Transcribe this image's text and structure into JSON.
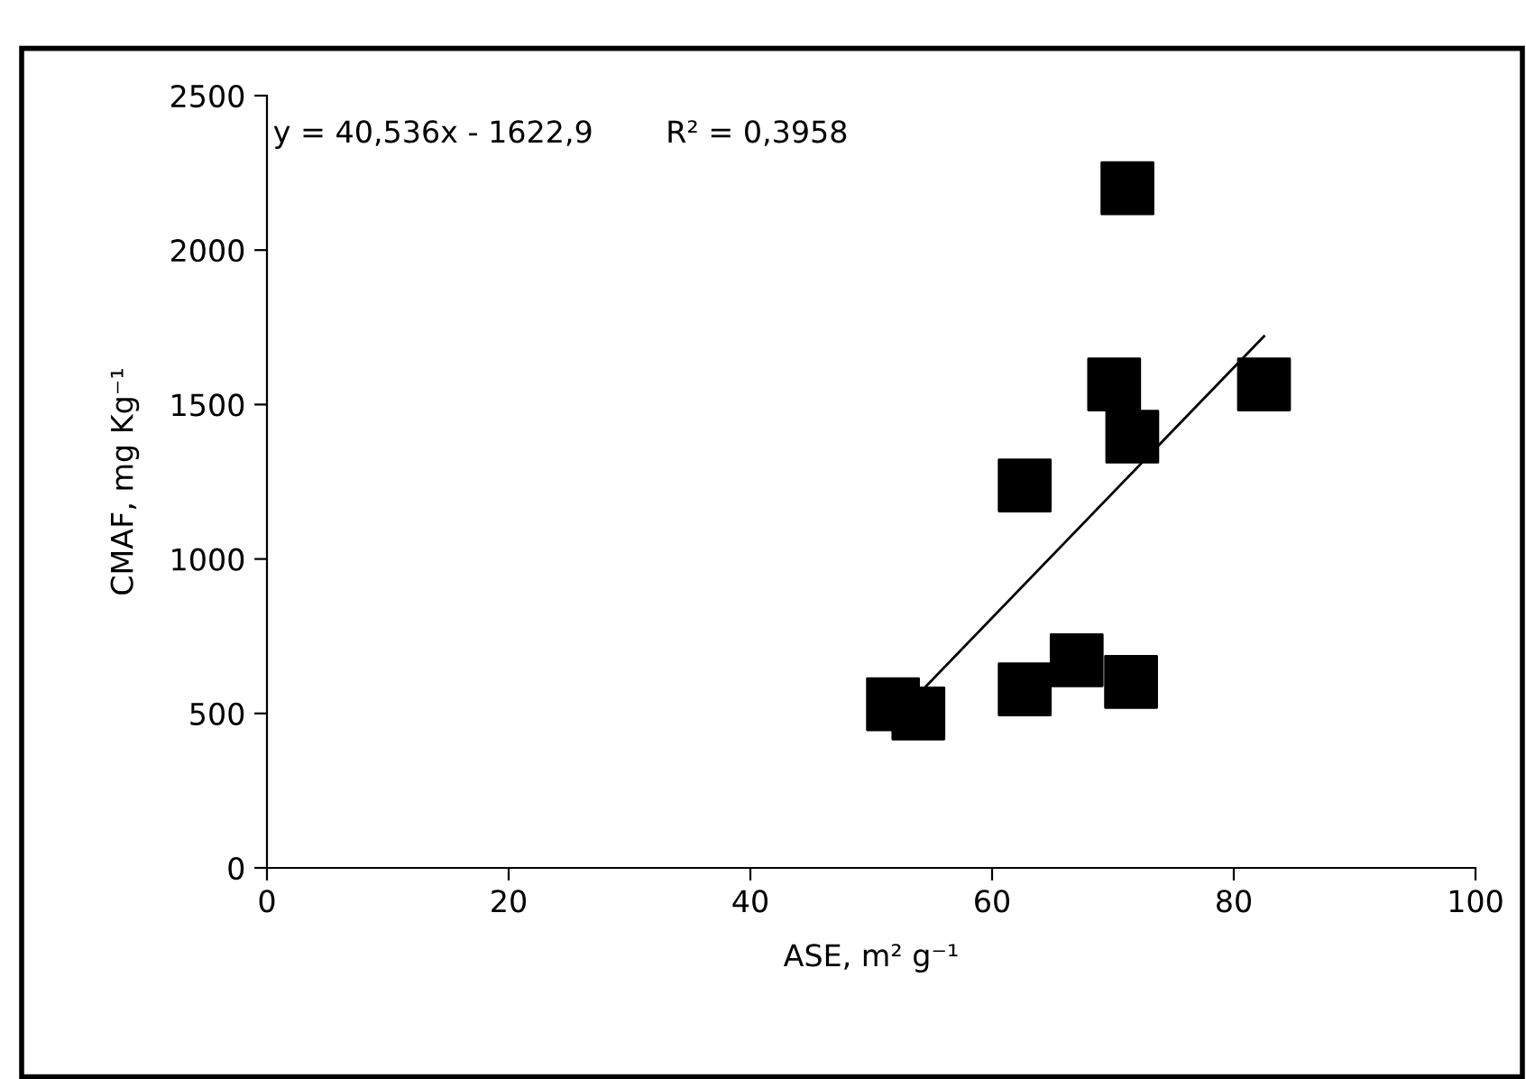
{
  "chart_data": {
    "type": "scatter",
    "xlabel": "ASE, m² g⁻¹",
    "ylabel": "CMAF, mg Kg⁻¹",
    "annotations": [
      "y = 40,536x - 1622,9",
      "R² = 0,3958"
    ],
    "grid": false,
    "legend": false,
    "xlim": [
      0,
      100
    ],
    "xticks": [
      0,
      20,
      40,
      60,
      80,
      100
    ],
    "ylim": [
      0,
      2500
    ],
    "yticks": [
      0,
      500,
      1000,
      1500,
      2000,
      2500
    ],
    "series": [
      {
        "color": "#000000",
        "marker": "square",
        "x": [
          71.2,
          70.1,
          82.5,
          71.6,
          62.7,
          67.0,
          62.7,
          71.5,
          53.9,
          51.8
        ],
        "values": [
          2200,
          1565,
          1565,
          1396,
          1238,
          672,
          578,
          602,
          500,
          530
        ]
      },
      {
        "type": "line",
        "color": "#000000",
        "line_style": "solid",
        "marker": "none",
        "x": [
          53.5,
          82.5
        ],
        "values": [
          546,
          1721
        ]
      }
    ]
  }
}
